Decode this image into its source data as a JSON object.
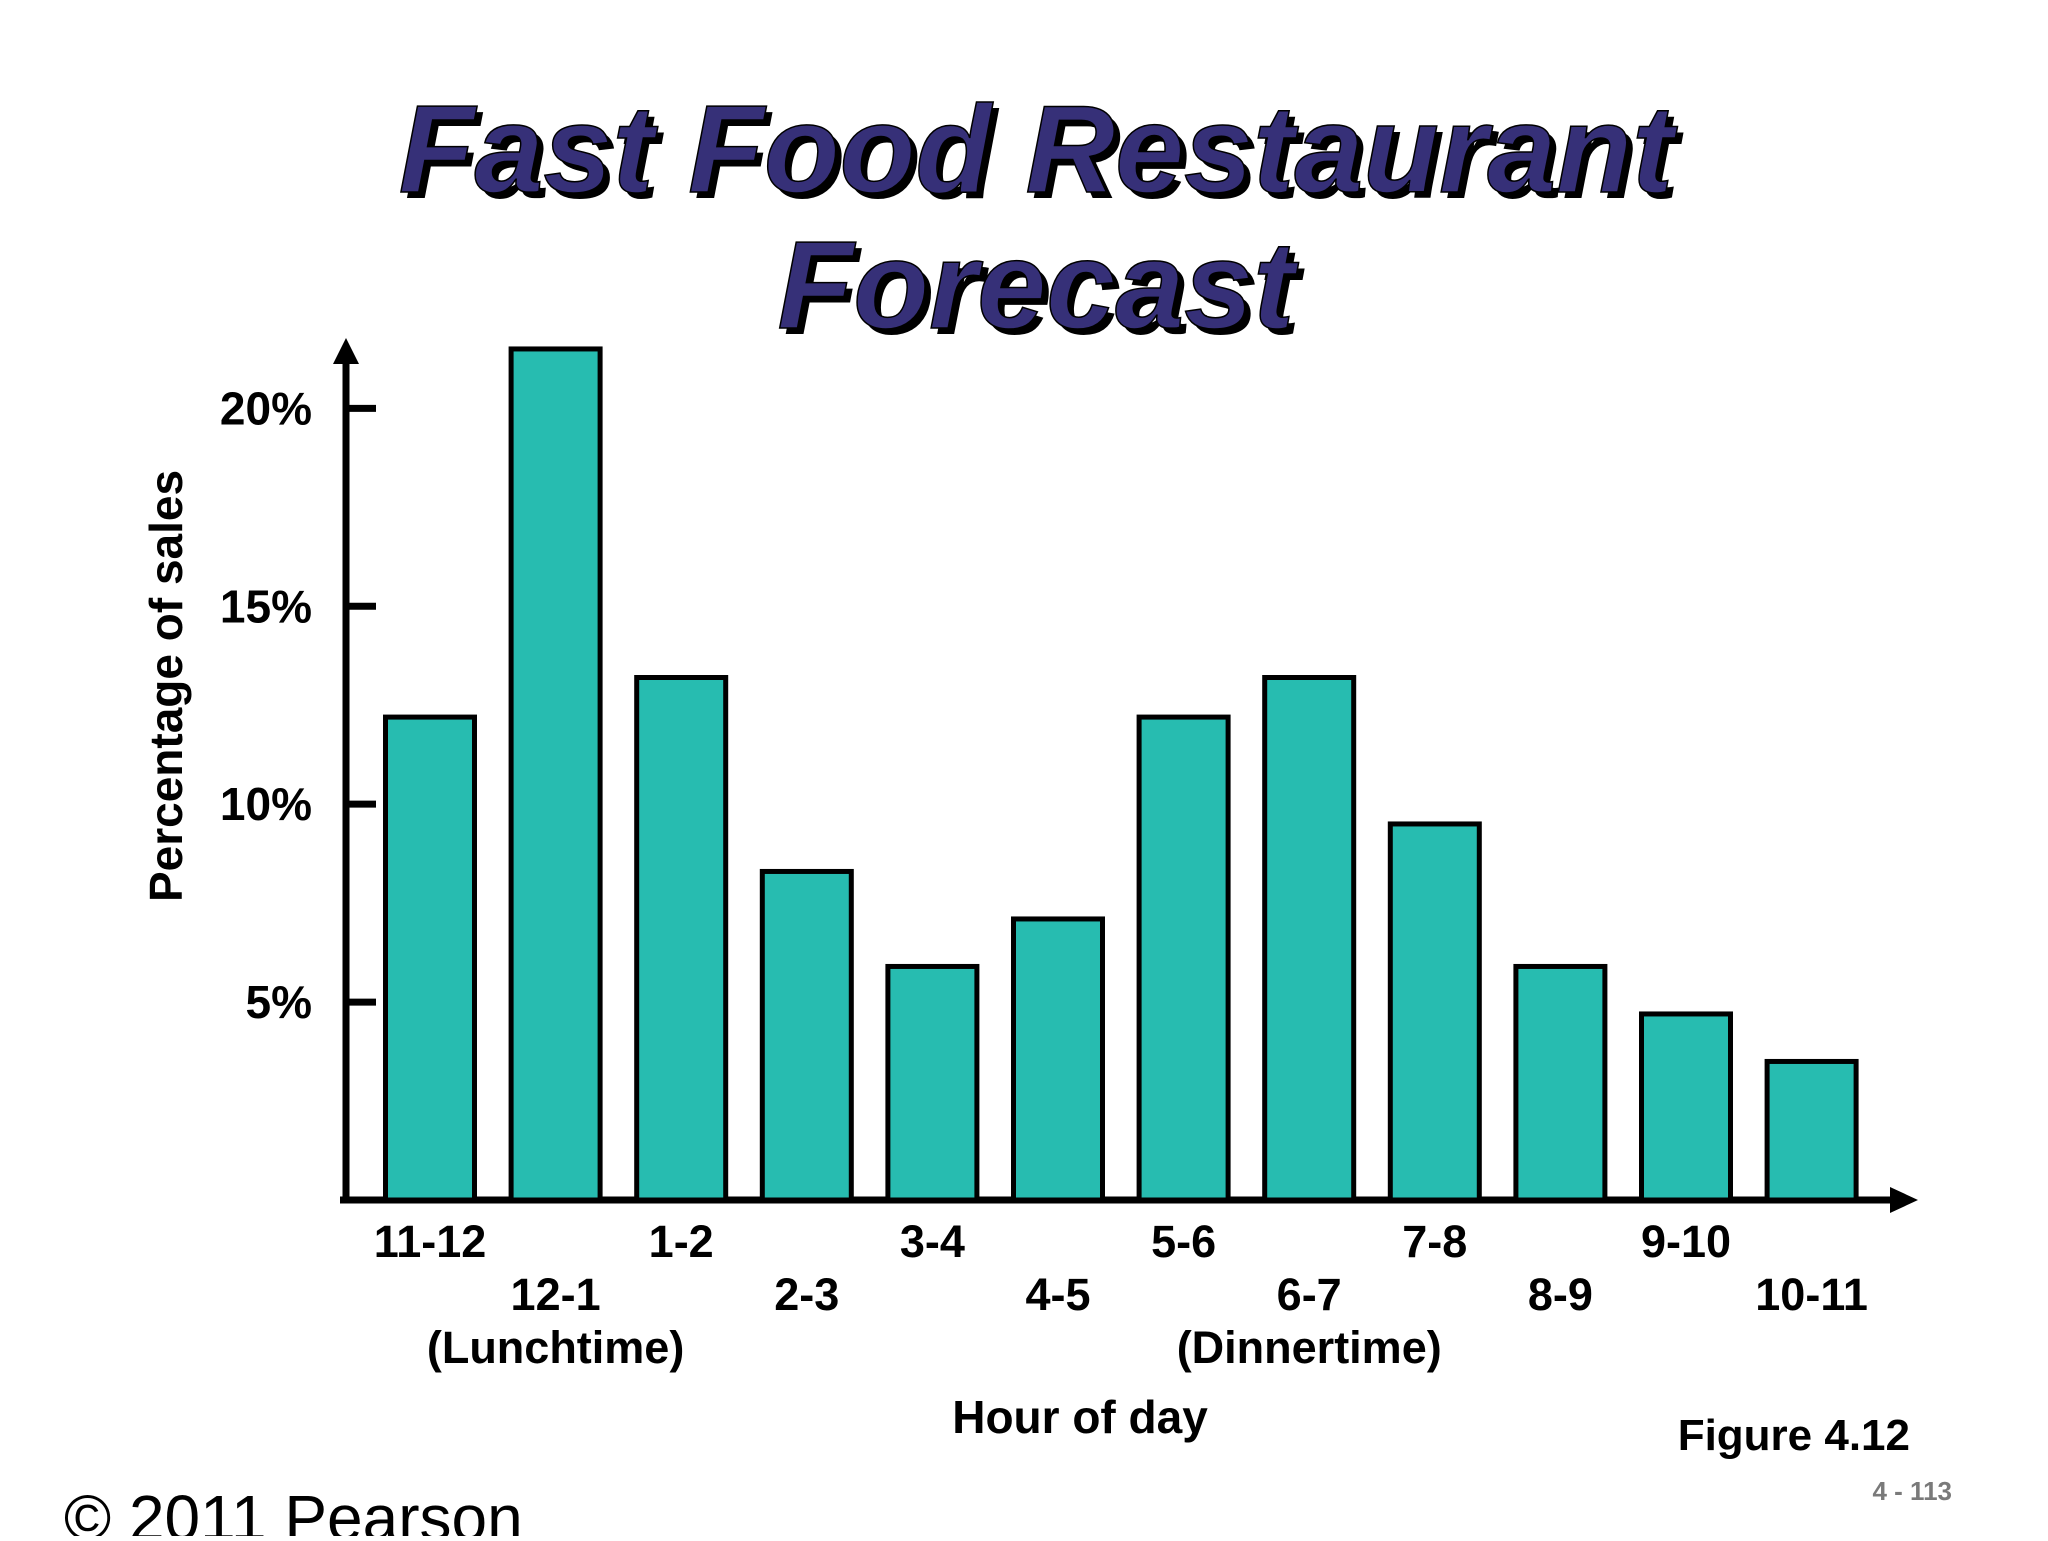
{
  "slide": {
    "title_line1": "Fast Food Restaurant",
    "title_line2": "Forecast",
    "figure_label": "Figure 4.12",
    "page_number": "4 - 113",
    "copyright": "© 2011 Pearson"
  },
  "chart_data": {
    "type": "bar",
    "title": "Fast Food Restaurant Forecast",
    "xlabel": "Hour of day",
    "ylabel": "Percentage of sales",
    "categories": [
      "11-12",
      "12-1",
      "1-2",
      "2-3",
      "3-4",
      "4-5",
      "5-6",
      "6-7",
      "7-8",
      "8-9",
      "9-10",
      "10-11"
    ],
    "period_labels": [
      {
        "category": "12-1",
        "text": "(Lunchtime)"
      },
      {
        "category": "6-7",
        "text": "(Dinnertime)"
      }
    ],
    "values": [
      12.2,
      21.5,
      13.2,
      8.3,
      5.9,
      7.1,
      12.2,
      13.2,
      9.5,
      5.9,
      4.7,
      3.5
    ],
    "yticks": [
      {
        "value": 5,
        "label": "5%"
      },
      {
        "value": 10,
        "label": "10%"
      },
      {
        "value": 15,
        "label": "15%"
      },
      {
        "value": 20,
        "label": "20%"
      }
    ],
    "ylim": [
      0,
      24
    ],
    "bar_color": "#27bcb0",
    "grid": false,
    "legend": "none"
  }
}
